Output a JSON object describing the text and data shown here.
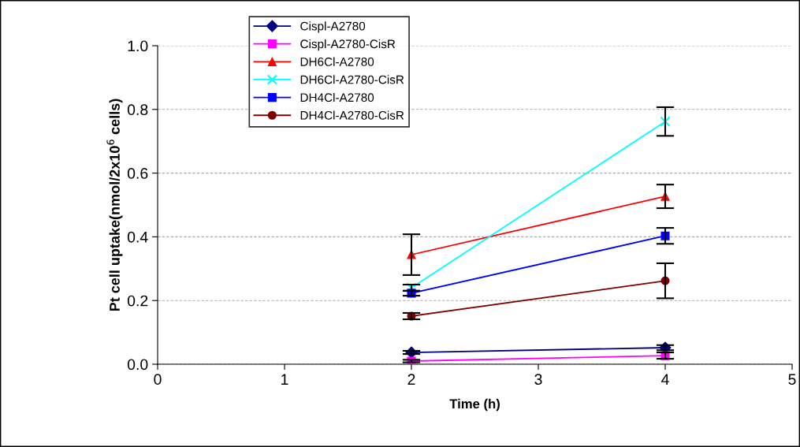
{
  "chart_data": {
    "type": "line",
    "xlabel": "Time (h)",
    "ylabel": "Pt cell uptake(nmol/2x10$^{6}$ cells)",
    "xlim": [
      0,
      5
    ],
    "xticks": [
      0,
      1,
      2,
      3,
      4,
      5
    ],
    "ylim": [
      0,
      1.0
    ],
    "yticks": [
      {
        "value": 0,
        "label": "0.0"
      },
      {
        "value": 0.2,
        "label": "0.2"
      },
      {
        "value": 0.4,
        "label": "0.4"
      },
      {
        "value": 0.6,
        "label": "0.6"
      },
      {
        "value": 0.8,
        "label": "0.8"
      },
      {
        "value": 1.0,
        "label": "1.0"
      }
    ],
    "grid": "y",
    "legend": "top left",
    "line_style": "solid",
    "x": [
      2,
      4
    ],
    "series": [
      {
        "name": "Cispl-A2780",
        "color": "#000080",
        "marker": "diamond",
        "values": [
          0.037,
          0.052
        ],
        "errors": [
          0.005,
          0.008
        ]
      },
      {
        "name": "Cispl-A2780-CisR",
        "color": "#ff00ff",
        "marker": "square",
        "values": [
          0.01,
          0.027
        ],
        "errors": [
          0.004,
          0.01
        ]
      },
      {
        "name": "DH6Cl-A2780",
        "color": "#ff0000",
        "marker": "triangle",
        "values": [
          0.344,
          0.527
        ],
        "errors": [
          0.064,
          0.037
        ]
      },
      {
        "name": "DH6Cl-A2780-CisR",
        "color": "#00ffff",
        "marker": "cross",
        "values": [
          0.24,
          0.762
        ],
        "errors": [
          0.01,
          0.045
        ]
      },
      {
        "name": "DH4Cl-A2780",
        "color": "#0000ff",
        "marker": "square",
        "values": [
          0.223,
          0.403
        ],
        "errors": [
          0.008,
          0.025
        ]
      },
      {
        "name": "DH4Cl-A2780-CisR",
        "color": "#800000",
        "marker": "circle",
        "values": [
          0.151,
          0.262
        ],
        "errors": [
          0.01,
          0.055
        ]
      }
    ]
  }
}
